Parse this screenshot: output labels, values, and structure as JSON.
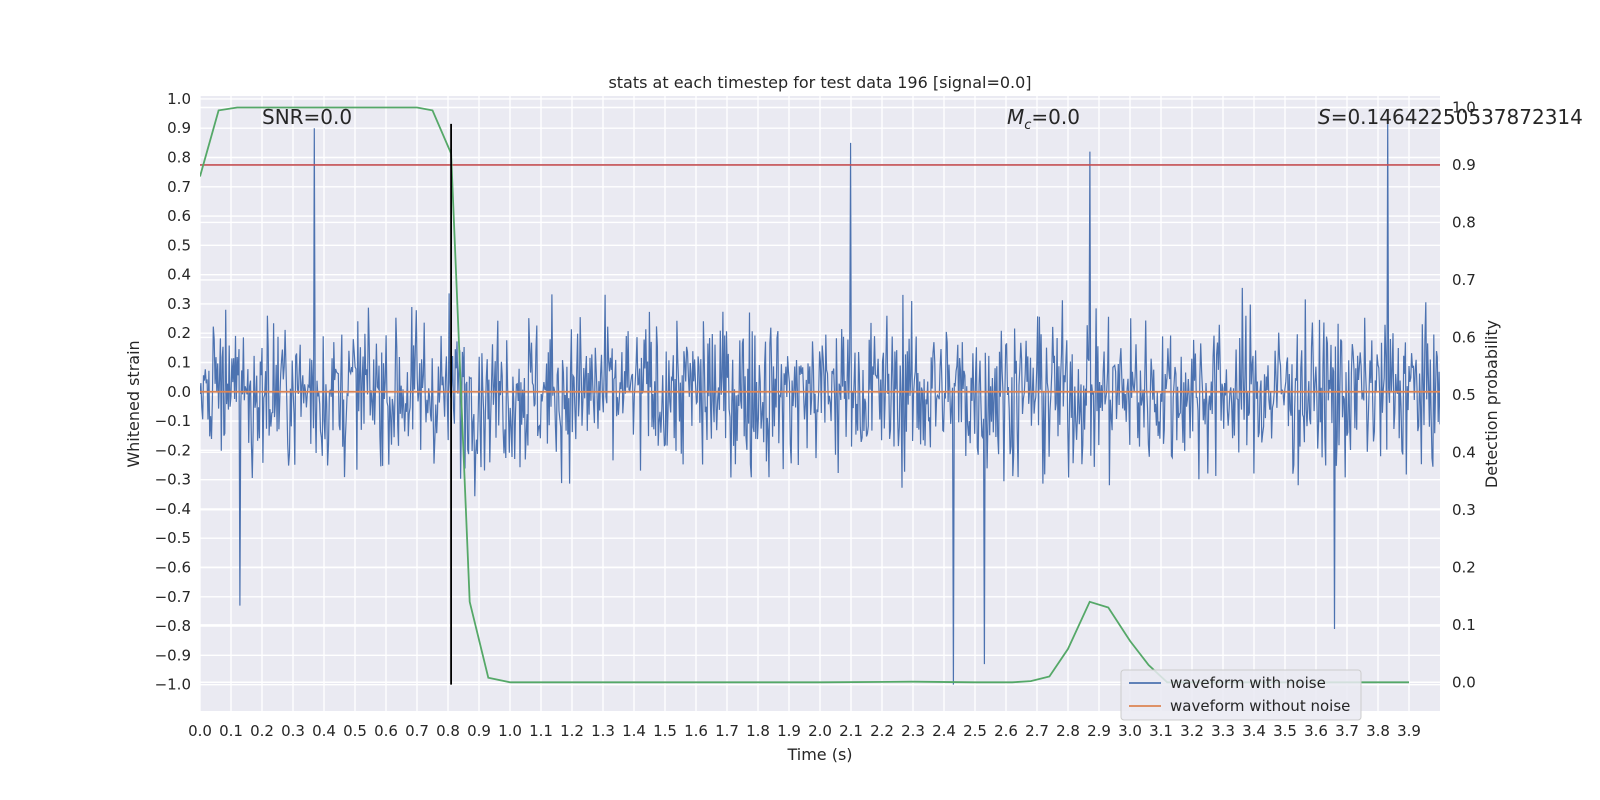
{
  "chart_data": {
    "type": "line",
    "title": "stats at each timestep for test data 196 [signal=0.0]",
    "xlabel": "Time (s)",
    "ylabel": "Whitened strain",
    "y2label": "Detection probability",
    "xlim": [
      0.0,
      4.0
    ],
    "ylim": [
      -1.09,
      1.01
    ],
    "y2lim": [
      -0.05,
      1.02
    ],
    "xticks": [
      "0.0",
      "0.1",
      "0.2",
      "0.3",
      "0.4",
      "0.5",
      "0.6",
      "0.7",
      "0.8",
      "0.9",
      "1.0",
      "1.1",
      "1.2",
      "1.3",
      "1.4",
      "1.5",
      "1.6",
      "1.7",
      "1.8",
      "1.9",
      "2.0",
      "2.1",
      "2.2",
      "2.3",
      "2.4",
      "2.5",
      "2.6",
      "2.7",
      "2.8",
      "2.9",
      "3.0",
      "3.1",
      "3.2",
      "3.3",
      "3.4",
      "3.5",
      "3.6",
      "3.7",
      "3.8",
      "3.9"
    ],
    "yticks": [
      "1.0",
      "0.9",
      "0.8",
      "0.7",
      "0.6",
      "0.5",
      "0.4",
      "0.3",
      "0.2",
      "0.1",
      "0.0",
      "−0.1",
      "−0.2",
      "−0.3",
      "−0.4",
      "−0.5",
      "−0.6",
      "−0.7",
      "−0.8",
      "−0.9",
      "−1.0"
    ],
    "y2ticks": [
      "1.0",
      "0.9",
      "0.8",
      "0.7",
      "0.6",
      "0.5",
      "0.4",
      "0.3",
      "0.2",
      "0.1",
      "0.0"
    ],
    "grid": true,
    "legend_position": "lower-right",
    "series": [
      {
        "name": "waveform with noise",
        "axis": "left",
        "color": "#4c72b0",
        "x_range": [
          0.0,
          4.0
        ],
        "samples": 1400,
        "amplitude_approx": 0.25,
        "notable_extremes": [
          {
            "x": 0.37,
            "y": 0.9
          },
          {
            "x": 2.1,
            "y": 0.85
          },
          {
            "x": 2.87,
            "y": 0.82
          },
          {
            "x": 3.83,
            "y": 0.93
          },
          {
            "x": 0.13,
            "y": -0.73
          },
          {
            "x": 2.43,
            "y": -1.0
          },
          {
            "x": 2.53,
            "y": -0.93
          },
          {
            "x": 3.66,
            "y": -0.81
          }
        ]
      },
      {
        "name": "waveform without noise",
        "axis": "left",
        "color": "#dd8452",
        "x": [
          0.0,
          4.0
        ],
        "y": [
          0.0,
          0.0
        ]
      },
      {
        "axis": "right",
        "color": "#55a868",
        "x": [
          0.0,
          0.06,
          0.12,
          0.2,
          0.4,
          0.7,
          0.75,
          0.81,
          0.87,
          0.93,
          1.0,
          1.5,
          2.0,
          2.3,
          2.5,
          2.62,
          2.68,
          2.74,
          2.8,
          2.87,
          2.93,
          3.0,
          3.06,
          3.12,
          3.3,
          3.9
        ],
        "y": [
          0.88,
          0.995,
          1.0,
          1.0,
          1.0,
          1.0,
          0.995,
          0.92,
          0.14,
          0.008,
          0.0,
          0.0,
          0.0,
          0.001,
          0.0,
          0.0,
          0.002,
          0.01,
          0.058,
          0.14,
          0.13,
          0.072,
          0.03,
          0.0,
          0.0,
          0.0
        ]
      }
    ],
    "threshold_line": {
      "axis": "right",
      "y": 0.9,
      "color": "#c44e52"
    },
    "vertical_line": {
      "x": 0.81,
      "y_from": -1.0,
      "y_to": 0.915,
      "color": "#000000"
    },
    "annotations": {
      "snr": "SNR=0.0",
      "mc_symbol": "M",
      "mc_sub": "c",
      "mc_value": "=0.0",
      "s_symbol": "S",
      "s_value": "=0.14642250537872314"
    }
  }
}
